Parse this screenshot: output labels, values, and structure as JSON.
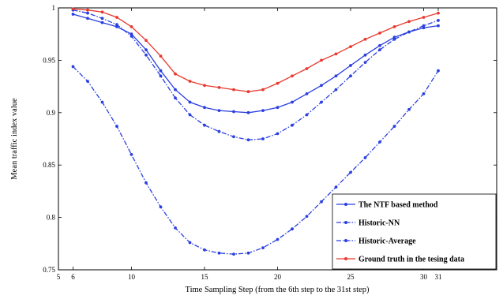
{
  "chart_data": {
    "type": "line",
    "title": "",
    "xlabel": "Time Sampling Step (from the 6th step to the 31st step)",
    "ylabel": "Mean traffic index value",
    "xlim": [
      5,
      35
    ],
    "ylim": [
      0.75,
      1.0
    ],
    "xticks": [
      5,
      6,
      10,
      15,
      20,
      25,
      30,
      31
    ],
    "xtick_labels": [
      "5",
      "6",
      "10",
      "15",
      "20",
      "25",
      "30",
      "31"
    ],
    "yticks": [
      0.75,
      0.8,
      0.85,
      0.9,
      0.95,
      1.0
    ],
    "ytick_labels": [
      "0.75",
      "0.8",
      "0.85",
      "0.9",
      "0.95",
      "1"
    ],
    "grid": false,
    "legend_position": "bottom-right",
    "x": [
      6,
      7,
      8,
      9,
      10,
      11,
      12,
      13,
      14,
      15,
      16,
      17,
      18,
      19,
      20,
      21,
      22,
      23,
      24,
      25,
      26,
      27,
      28,
      29,
      30,
      31
    ],
    "series": [
      {
        "name": "The NTF based method",
        "color": "#2a3fe0",
        "style": "solid",
        "values": [
          0.994,
          0.99,
          0.986,
          0.982,
          0.975,
          0.96,
          0.94,
          0.922,
          0.91,
          0.905,
          0.902,
          0.901,
          0.9,
          0.902,
          0.905,
          0.91,
          0.918,
          0.926,
          0.935,
          0.945,
          0.955,
          0.964,
          0.972,
          0.977,
          0.981,
          0.983
        ]
      },
      {
        "name": "Historic-NN",
        "color": "#2a3fe0",
        "style": "dashdot",
        "values": [
          0.998,
          0.995,
          0.99,
          0.984,
          0.973,
          0.955,
          0.935,
          0.914,
          0.898,
          0.888,
          0.882,
          0.877,
          0.874,
          0.875,
          0.88,
          0.888,
          0.898,
          0.91,
          0.922,
          0.935,
          0.948,
          0.96,
          0.97,
          0.977,
          0.983,
          0.988
        ]
      },
      {
        "name": "Historic-Average",
        "color": "#2a3fe0",
        "style": "dashdot",
        "values": [
          0.944,
          0.93,
          0.91,
          0.887,
          0.86,
          0.833,
          0.81,
          0.79,
          0.776,
          0.769,
          0.766,
          0.765,
          0.766,
          0.771,
          0.779,
          0.789,
          0.801,
          0.815,
          0.829,
          0.843,
          0.857,
          0.872,
          0.887,
          0.903,
          0.918,
          0.94
        ]
      },
      {
        "name": "Ground truth in the tesing data",
        "color": "#e8392f",
        "style": "solid",
        "values": [
          0.999,
          0.998,
          0.996,
          0.991,
          0.982,
          0.969,
          0.954,
          0.937,
          0.93,
          0.926,
          0.924,
          0.922,
          0.92,
          0.922,
          0.928,
          0.935,
          0.942,
          0.95,
          0.956,
          0.963,
          0.97,
          0.976,
          0.982,
          0.987,
          0.991,
          0.995
        ]
      }
    ]
  }
}
